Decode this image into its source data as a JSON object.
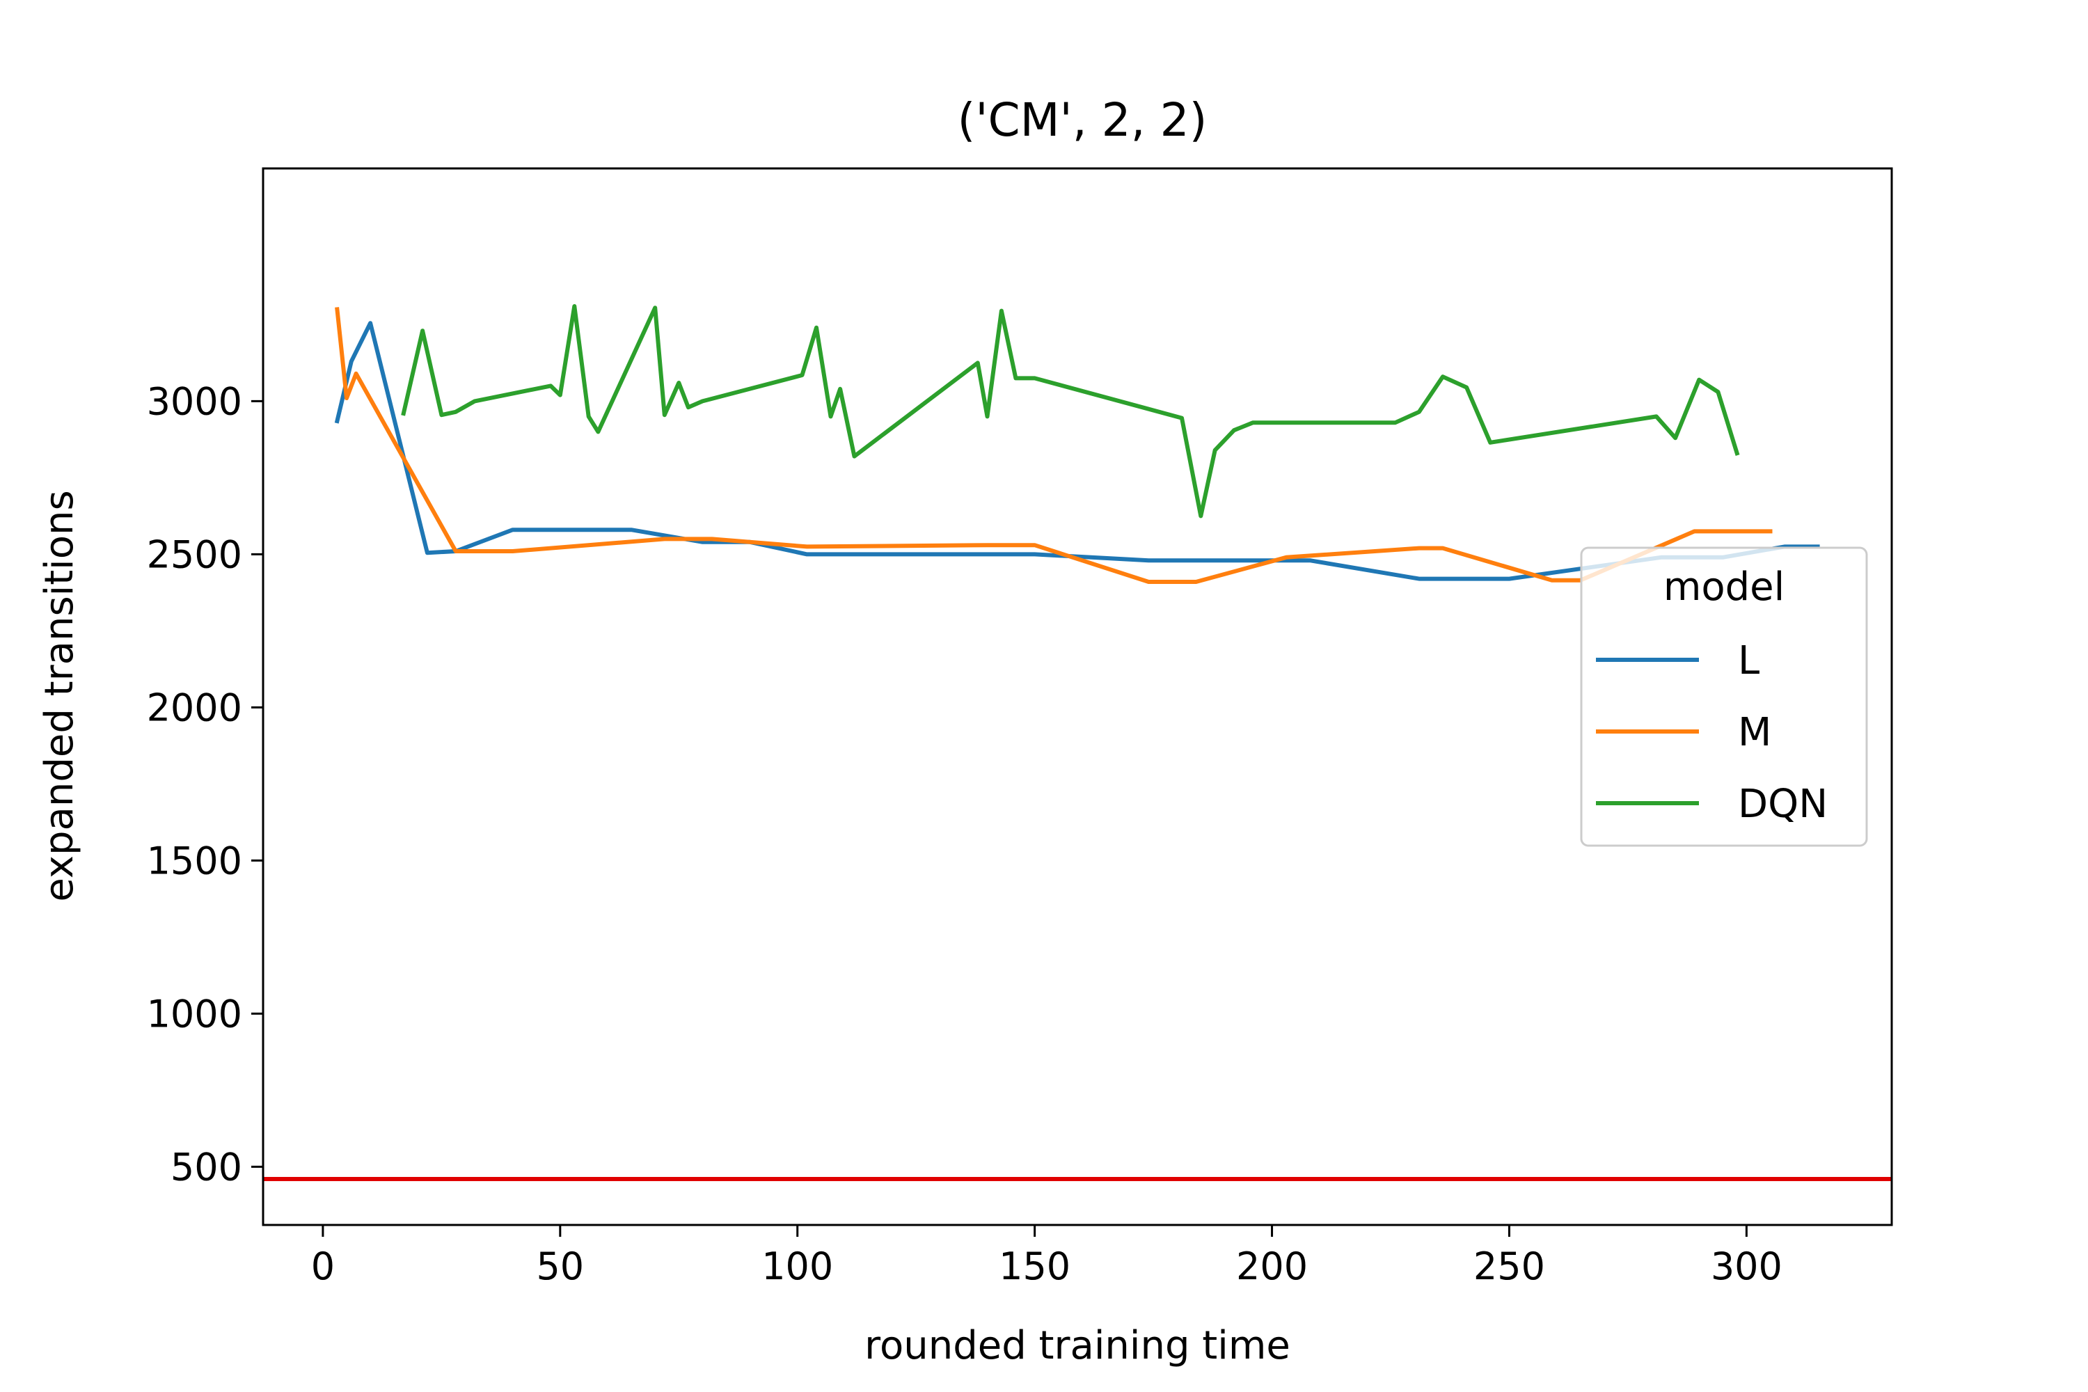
{
  "chart_data": {
    "type": "line",
    "title": "('CM', 2, 2)",
    "xlabel": "rounded training time",
    "ylabel": "expanded transitions",
    "xlim": [
      -12.6,
      330.6
    ],
    "ylim": [
      310,
      3760
    ],
    "xticks": [
      0,
      50,
      100,
      150,
      200,
      250,
      300
    ],
    "yticks": [
      500,
      1000,
      1500,
      2000,
      2500,
      3000
    ],
    "grid": false,
    "legend": {
      "title": "model",
      "position": "center-right"
    },
    "series": [
      {
        "name": "L",
        "color": "#1f77b4",
        "x": [
          3,
          6,
          10,
          22,
          28,
          40,
          65,
          80,
          90,
          102,
          150,
          174,
          208,
          231,
          250,
          282,
          295,
          308,
          315
        ],
        "y": [
          2935,
          3130,
          3255,
          2505,
          2510,
          2580,
          2580,
          2540,
          2540,
          2500,
          2500,
          2480,
          2480,
          2420,
          2420,
          2490,
          2490,
          2525,
          2525
        ]
      },
      {
        "name": "M",
        "color": "#ff7f0e",
        "x": [
          3,
          5,
          7,
          28,
          40,
          72,
          82,
          102,
          140,
          150,
          174,
          184,
          203,
          231,
          236,
          259,
          265,
          289,
          305
        ],
        "y": [
          3300,
          3010,
          3090,
          2510,
          2510,
          2550,
          2550,
          2525,
          2530,
          2530,
          2410,
          2410,
          2490,
          2520,
          2520,
          2415,
          2415,
          2575,
          2575
        ]
      },
      {
        "name": "DQN",
        "color": "#2ca02c",
        "x": [
          17,
          21,
          25,
          28,
          32,
          48,
          50,
          53,
          56,
          58,
          70,
          72,
          75,
          77,
          80,
          101,
          104,
          107,
          109,
          112,
          138,
          140,
          143,
          146,
          150,
          181,
          185,
          188,
          192,
          196,
          226,
          231,
          236,
          241,
          246,
          281,
          285,
          290,
          294,
          298
        ],
        "y": [
          2960,
          3230,
          2955,
          2965,
          3000,
          3050,
          3020,
          3310,
          2950,
          2900,
          3305,
          2955,
          3060,
          2980,
          3000,
          3085,
          3240,
          2950,
          3040,
          2820,
          3125,
          2950,
          3295,
          3075,
          3075,
          2945,
          2625,
          2840,
          2905,
          2930,
          2930,
          2965,
          3080,
          3045,
          2865,
          2950,
          2880,
          3070,
          3030,
          2830
        ]
      }
    ],
    "reference_line": {
      "y": 460,
      "color": "#e00000"
    }
  }
}
